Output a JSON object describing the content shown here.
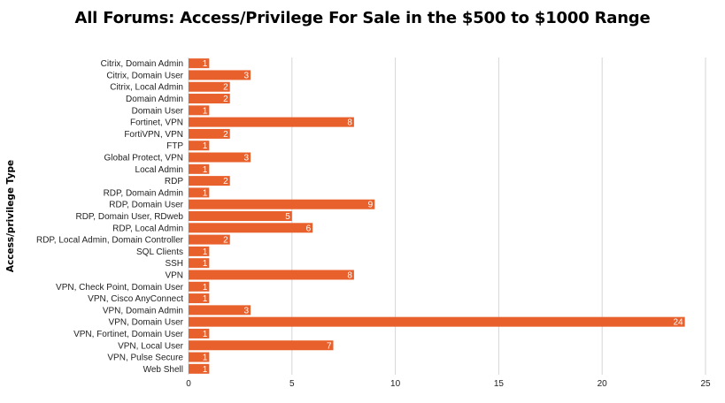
{
  "chart_data": {
    "type": "bar",
    "orientation": "horizontal",
    "title": "All Forums: Access/Privilege For Sale in the $500 to $1000 Range",
    "xlabel": "",
    "ylabel": "Access/privilege Type",
    "xlim": [
      0,
      25
    ],
    "xticks": [
      0,
      5,
      10,
      15,
      20,
      25
    ],
    "grid": "vertical",
    "legend": "none",
    "bar_color": "#E8602C",
    "data_labels": true,
    "categories": [
      "Citrix, Domain Admin",
      "Citrix, Domain User",
      "Citrix, Local Admin",
      "Domain Admin",
      "Domain User",
      "Fortinet, VPN",
      "FortiVPN, VPN",
      "FTP",
      "Global Protect, VPN",
      "Local Admin",
      "RDP",
      "RDP, Domain Admin",
      "RDP, Domain User",
      "RDP, Domain User, RDweb",
      "RDP, Local Admin",
      "RDP, Local Admin, Domain Controller",
      "SQL Clients",
      "SSH",
      "VPN",
      "VPN, Check Point, Domain User",
      "VPN, Cisco AnyConnect",
      "VPN, Domain Admin",
      "VPN, Domain User",
      "VPN, Fortinet, Domain User",
      "VPN, Local User",
      "VPN, Pulse Secure",
      "Web Shell"
    ],
    "values": [
      1,
      3,
      2,
      2,
      1,
      8,
      2,
      1,
      3,
      1,
      2,
      1,
      9,
      5,
      6,
      2,
      1,
      1,
      8,
      1,
      1,
      3,
      24,
      1,
      7,
      1,
      1
    ]
  }
}
